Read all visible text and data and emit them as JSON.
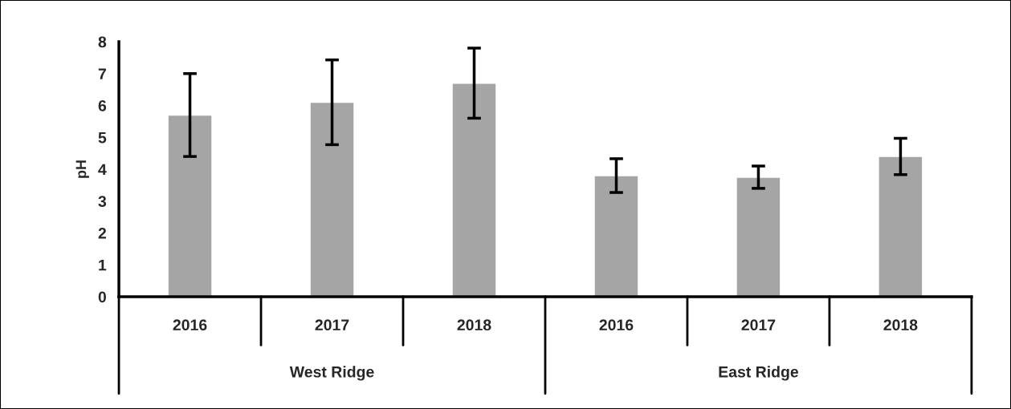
{
  "chart_data": {
    "type": "bar",
    "ylabel": "pH",
    "categories": [
      "2016",
      "2017",
      "2018",
      "2016",
      "2017",
      "2018"
    ],
    "values": [
      5.7,
      6.1,
      6.7,
      3.8,
      3.75,
      4.4
    ],
    "errors": [
      1.3,
      1.33,
      1.1,
      0.53,
      0.35,
      0.57
    ],
    "color": "#a5a5a5",
    "ylim": [
      0,
      8
    ],
    "yticks": [
      0,
      1,
      2,
      3,
      4,
      5,
      6,
      7,
      8
    ],
    "grid": false,
    "legend": false,
    "annotations": [
      "West Ridge",
      "East Ridge"
    ]
  }
}
